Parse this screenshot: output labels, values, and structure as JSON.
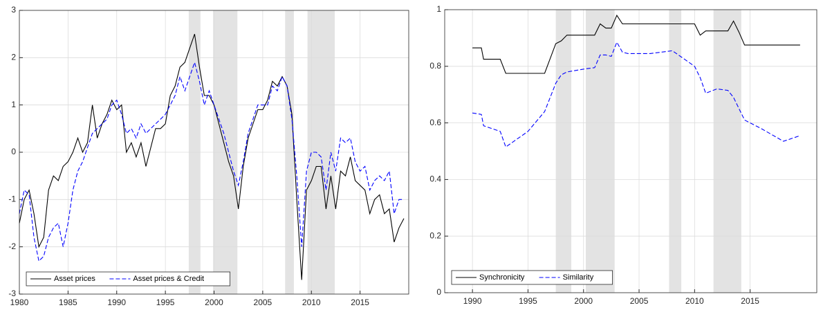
{
  "chart_data": [
    {
      "type": "line",
      "legend": "lower left",
      "grid": true,
      "xlim": [
        1980,
        2020
      ],
      "ylim": [
        -3,
        3
      ],
      "xticks": [
        1980,
        1985,
        1990,
        1995,
        2000,
        2005,
        2010,
        2015
      ],
      "yticks": [
        -3,
        -2,
        -1,
        0,
        1,
        2,
        3
      ],
      "shade_color": "#e3e3e3",
      "shaded": [
        [
          1997.4,
          1998.6
        ],
        [
          1999.9,
          2002.4
        ],
        [
          2007.3,
          2008.2
        ],
        [
          2009.6,
          2012.4
        ]
      ],
      "x": [
        1980,
        1980.5,
        1981,
        1981.5,
        1982,
        1982.5,
        1983,
        1983.5,
        1984,
        1984.5,
        1985,
        1985.5,
        1986,
        1986.5,
        1987,
        1987.5,
        1988,
        1988.5,
        1989,
        1989.5,
        1990,
        1990.5,
        1991,
        1991.5,
        1992,
        1992.5,
        1993,
        1993.5,
        1994,
        1994.5,
        1995,
        1995.5,
        1996,
        1996.5,
        1997,
        1997.5,
        1998,
        1998.5,
        1999,
        1999.5,
        2000,
        2000.5,
        2001,
        2001.5,
        2002,
        2002.5,
        2003,
        2003.5,
        2004,
        2004.5,
        2005,
        2005.5,
        2006,
        2006.5,
        2007,
        2007.5,
        2008,
        2008.5,
        2009,
        2009.5,
        2010,
        2010.5,
        2011,
        2011.5,
        2012,
        2012.5,
        2013,
        2013.5,
        2014,
        2014.5,
        2015,
        2015.5,
        2016,
        2016.5,
        2017,
        2017.5,
        2018,
        2018.5,
        2019,
        2019.5
      ],
      "series": [
        {
          "name": "Asset prices",
          "color": "#000000",
          "dash": false,
          "values": [
            -1.5,
            -1.0,
            -0.8,
            -1.3,
            -2.0,
            -1.8,
            -0.8,
            -0.5,
            -0.6,
            -0.3,
            -0.2,
            0.0,
            0.3,
            0.0,
            0.2,
            1.0,
            0.3,
            0.6,
            0.8,
            1.1,
            0.9,
            1.0,
            0.0,
            0.2,
            -0.1,
            0.2,
            -0.3,
            0.1,
            0.5,
            0.5,
            0.6,
            1.2,
            1.4,
            1.8,
            1.9,
            2.2,
            2.5,
            1.8,
            1.2,
            1.2,
            1.0,
            0.6,
            0.2,
            -0.2,
            -0.5,
            -1.2,
            -0.3,
            0.3,
            0.6,
            0.9,
            0.9,
            1.1,
            1.5,
            1.4,
            1.6,
            1.4,
            0.8,
            -1.0,
            -2.7,
            -0.8,
            -0.6,
            -0.3,
            -0.3,
            -1.2,
            -0.5,
            -1.2,
            -0.4,
            -0.5,
            -0.1,
            -0.6,
            -0.7,
            -0.8,
            -1.3,
            -1.0,
            -0.9,
            -1.3,
            -1.2,
            -1.9,
            -1.6,
            -1.4
          ]
        },
        {
          "name": "Asset prices & Credit",
          "color": "#0000ff",
          "dash": true,
          "values": [
            -1.3,
            -0.8,
            -0.9,
            -1.8,
            -2.3,
            -2.2,
            -1.8,
            -1.6,
            -1.5,
            -2.0,
            -1.5,
            -0.8,
            -0.4,
            -0.2,
            0.1,
            0.4,
            0.5,
            0.6,
            0.7,
            1.0,
            1.1,
            0.8,
            0.4,
            0.5,
            0.3,
            0.6,
            0.4,
            0.5,
            0.6,
            0.7,
            0.8,
            1.0,
            1.2,
            1.6,
            1.3,
            1.6,
            1.9,
            1.5,
            1.0,
            1.3,
            1.0,
            0.7,
            0.4,
            0.0,
            -0.4,
            -0.7,
            -0.2,
            0.4,
            0.7,
            1.0,
            1.0,
            1.0,
            1.4,
            1.3,
            1.6,
            1.4,
            0.7,
            -0.5,
            -2.0,
            -0.4,
            0.0,
            0.0,
            -0.1,
            -0.8,
            0.0,
            -0.4,
            0.3,
            0.2,
            0.3,
            -0.2,
            -0.4,
            -0.3,
            -0.8,
            -0.6,
            -0.5,
            -0.6,
            -0.4,
            -1.3,
            -1.0,
            -1.0
          ]
        }
      ]
    },
    {
      "type": "line",
      "legend": "lower left",
      "grid": true,
      "xlim": [
        1987.5,
        2021
      ],
      "ylim": [
        0,
        1
      ],
      "xticks": [
        1990,
        1995,
        2000,
        2005,
        2010,
        2015
      ],
      "yticks": [
        0,
        0.2,
        0.4,
        0.6,
        0.8,
        1
      ],
      "shade_color": "#e3e3e3",
      "shaded": [
        [
          1997.5,
          1998.9
        ],
        [
          2000.2,
          2002.8
        ],
        [
          2007.7,
          2008.8
        ],
        [
          2011.7,
          2014.2
        ]
      ],
      "x": [
        1990,
        1990.8,
        1991,
        1992.5,
        1993,
        1995,
        1996.5,
        1997.5,
        1998,
        1998.5,
        2000,
        2001,
        2001.5,
        2002,
        2002.5,
        2003,
        2003.5,
        2004,
        2006,
        2008,
        2010,
        2010.5,
        2011,
        2012,
        2013,
        2013.5,
        2014,
        2014.5,
        2016,
        2018,
        2019.5
      ],
      "series": [
        {
          "name": "Synchronicity",
          "color": "#000000",
          "dash": false,
          "values": [
            0.865,
            0.865,
            0.825,
            0.825,
            0.775,
            0.775,
            0.775,
            0.88,
            0.89,
            0.91,
            0.91,
            0.91,
            0.95,
            0.935,
            0.935,
            0.98,
            0.95,
            0.95,
            0.95,
            0.95,
            0.95,
            0.91,
            0.925,
            0.925,
            0.925,
            0.96,
            0.92,
            0.875,
            0.875,
            0.875,
            0.875
          ]
        },
        {
          "name": "Similarity",
          "color": "#0000ff",
          "dash": true,
          "values": [
            0.635,
            0.63,
            0.59,
            0.57,
            0.515,
            0.57,
            0.64,
            0.74,
            0.77,
            0.78,
            0.79,
            0.795,
            0.84,
            0.84,
            0.835,
            0.885,
            0.85,
            0.845,
            0.845,
            0.855,
            0.8,
            0.76,
            0.705,
            0.72,
            0.715,
            0.69,
            0.65,
            0.61,
            0.58,
            0.535,
            0.555
          ]
        }
      ]
    }
  ]
}
